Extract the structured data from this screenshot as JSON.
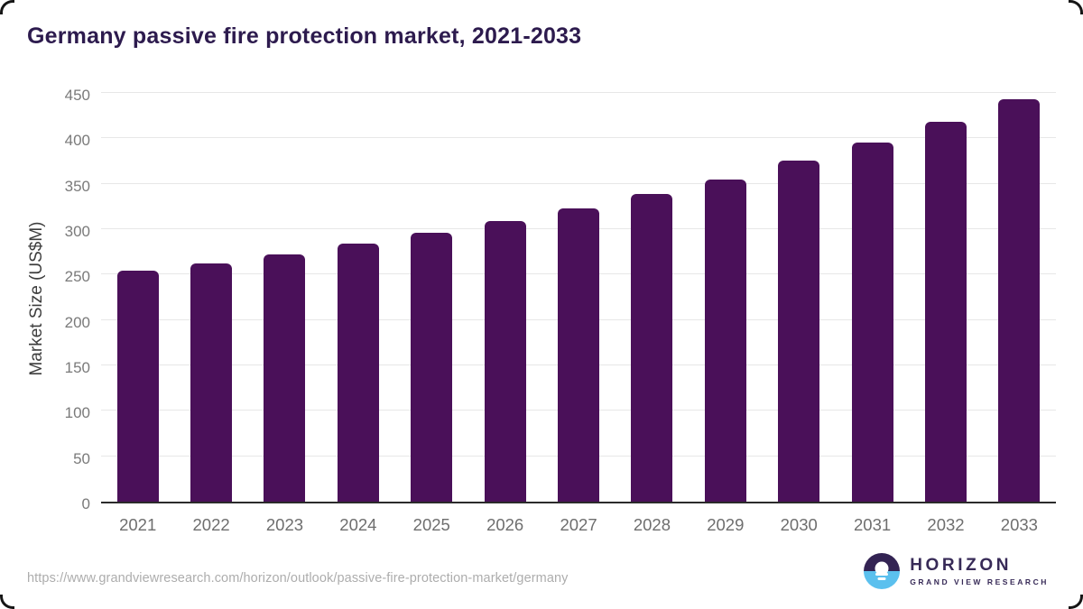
{
  "title": "Germany passive fire protection market, 2021-2033",
  "chart_data": {
    "type": "bar",
    "title": "Germany passive fire protection market, 2021-2033",
    "categories": [
      "2021",
      "2022",
      "2023",
      "2024",
      "2025",
      "2026",
      "2027",
      "2028",
      "2029",
      "2030",
      "2031",
      "2032",
      "2033"
    ],
    "values": [
      255,
      263,
      273,
      285,
      297,
      310,
      324,
      340,
      356,
      377,
      397,
      420,
      445
    ],
    "xlabel": "",
    "ylabel": "Market Size (US$M)",
    "ylim": [
      0,
      450
    ],
    "ytick_step": 50,
    "grid": true,
    "legend": false,
    "bar_color": "#4A1059"
  },
  "footer": {
    "source_url": "https://www.grandviewresearch.com/horizon/outlook/passive-fire-protection-market/germany",
    "logo": {
      "icon": "horizon-sun-icon",
      "name": "HORIZON",
      "subtitle": "GRAND VIEW RESEARCH",
      "brand_purple": "#372A57",
      "brand_blue": "#5BC0EE"
    }
  }
}
